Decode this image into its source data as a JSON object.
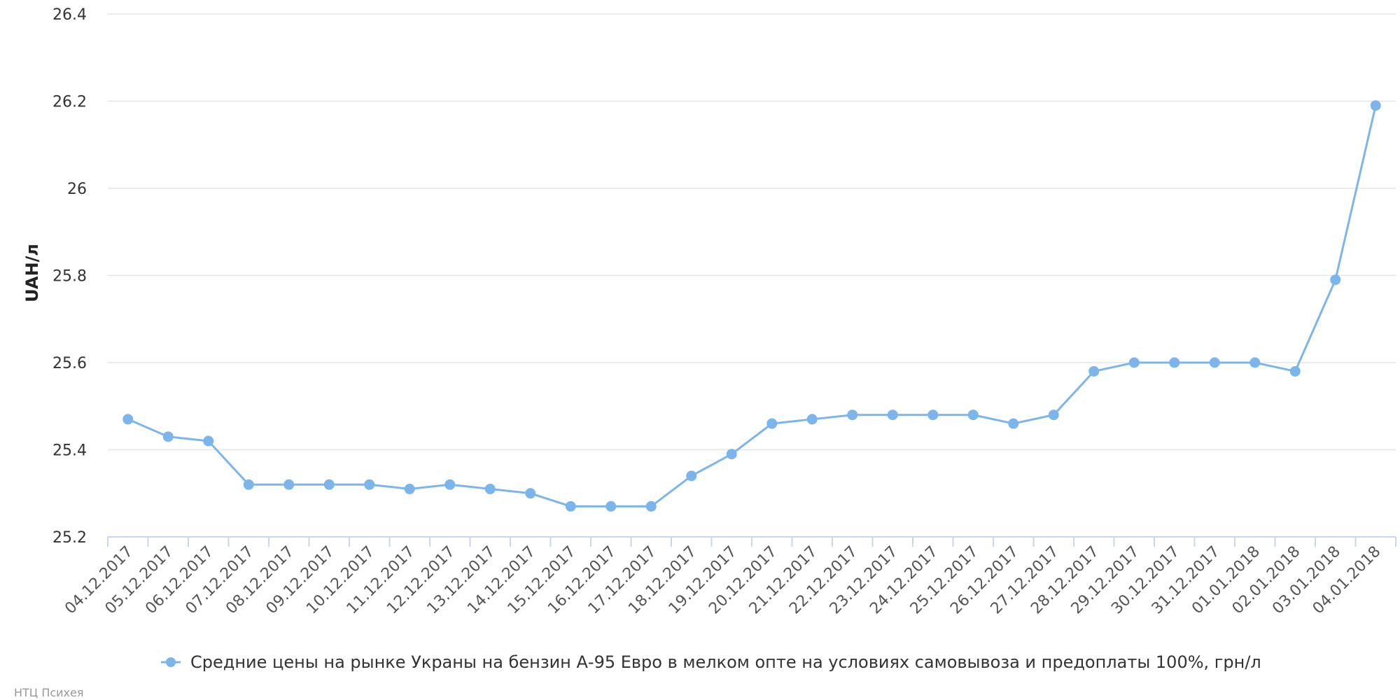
{
  "chart_data": {
    "type": "line",
    "title": "",
    "xlabel": "",
    "ylabel": "UAH/л",
    "ylim": [
      25.2,
      26.4
    ],
    "y_ticks": [
      "25.2",
      "25.4",
      "25.6",
      "25.8",
      "26",
      "26.2",
      "26.4"
    ],
    "grid": "horizontal",
    "legend_position": "bottom-center",
    "categories": [
      "04.12.2017",
      "05.12.2017",
      "06.12.2017",
      "07.12.2017",
      "08.12.2017",
      "09.12.2017",
      "10.12.2017",
      "11.12.2017",
      "12.12.2017",
      "13.12.2017",
      "14.12.2017",
      "15.12.2017",
      "16.12.2017",
      "17.12.2017",
      "18.12.2017",
      "19.12.2017",
      "20.12.2017",
      "21.12.2017",
      "22.12.2017",
      "23.12.2017",
      "24.12.2017",
      "25.12.2017",
      "26.12.2017",
      "27.12.2017",
      "28.12.2017",
      "29.12.2017",
      "30.12.2017",
      "31.12.2017",
      "01.01.2018",
      "02.01.2018",
      "03.01.2018",
      "04.01.2018"
    ],
    "series": [
      {
        "name": "Средние цены на рынке Украны на бензин А-95 Евро в мелком опте на условиях самовывоза и предоплаты 100%, грн/л",
        "color": "#7cb5ec",
        "values": [
          25.47,
          25.43,
          25.42,
          25.32,
          25.32,
          25.32,
          25.32,
          25.31,
          25.32,
          25.31,
          25.3,
          25.27,
          25.27,
          25.27,
          25.34,
          25.39,
          25.46,
          25.47,
          25.48,
          25.48,
          25.48,
          25.48,
          25.46,
          25.48,
          25.58,
          25.6,
          25.6,
          25.6,
          25.6,
          25.58,
          25.79,
          26.19
        ]
      }
    ]
  },
  "credit": "НТЦ Психея",
  "colors": {
    "series": "#7cb5ec",
    "grid": "#e6e6e6",
    "axis": "#ccd6eb"
  }
}
